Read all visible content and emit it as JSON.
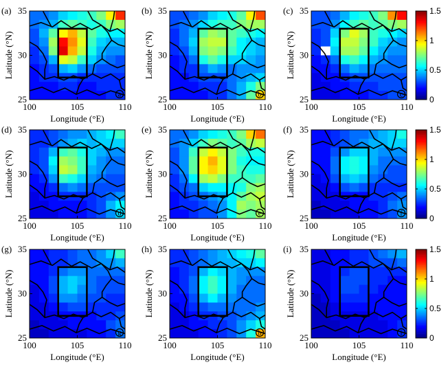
{
  "chart_data": {
    "type": "heatmap",
    "colormap": "jet",
    "clim": [
      0,
      1.5
    ],
    "colorbar_ticks": [
      0,
      0.5,
      1,
      1.5
    ],
    "xlabel": "Longitude (°E)",
    "ylabel": "Latitude (°N)",
    "xlim": [
      100,
      110
    ],
    "ylim": [
      25,
      35
    ],
    "xticks": [
      100,
      105,
      110
    ],
    "yticks": [
      25,
      30,
      35
    ],
    "grid_resolution_deg": 1,
    "study_box": {
      "lon": [
        103,
        106
      ],
      "lat": [
        27.5,
        33
      ]
    },
    "panels": [
      {
        "label": "(a)",
        "corner_mark": "a",
        "values": [
          [
            0.35,
            0.35,
            0.4,
            0.5,
            0.55,
            0.6,
            0.65,
            0.75,
            0.95,
            1.25
          ],
          [
            0.35,
            0.4,
            0.45,
            0.65,
            0.7,
            0.65,
            0.6,
            0.65,
            0.75,
            0.8
          ],
          [
            0.3,
            0.45,
            0.7,
            0.95,
            1.05,
            0.85,
            0.7,
            0.6,
            0.55,
            0.55
          ],
          [
            0.3,
            0.4,
            0.8,
            1.3,
            1.1,
            0.9,
            0.65,
            0.5,
            0.45,
            0.45
          ],
          [
            0.25,
            0.35,
            0.75,
            1.35,
            1.05,
            0.85,
            0.6,
            0.45,
            0.4,
            0.4
          ],
          [
            0.25,
            0.3,
            0.45,
            0.9,
            0.85,
            0.65,
            0.5,
            0.4,
            0.35,
            0.3
          ],
          [
            0.2,
            0.25,
            0.3,
            0.45,
            0.5,
            0.4,
            0.35,
            0.3,
            0.3,
            0.3
          ],
          [
            0.2,
            0.25,
            0.25,
            0.3,
            0.3,
            0.25,
            0.25,
            0.25,
            0.25,
            0.25
          ],
          [
            0.2,
            0.2,
            0.2,
            0.25,
            0.25,
            0.2,
            0.2,
            0.25,
            0.25,
            0.25
          ],
          [
            0.2,
            0.2,
            0.2,
            0.2,
            0.2,
            0.2,
            0.2,
            0.2,
            0.25,
            0.25
          ]
        ]
      },
      {
        "label": "(b)",
        "corner_mark": "b",
        "values": [
          [
            0.3,
            0.3,
            0.35,
            0.4,
            0.5,
            0.55,
            0.6,
            0.7,
            0.95,
            1.2
          ],
          [
            0.3,
            0.35,
            0.4,
            0.5,
            0.6,
            0.65,
            0.65,
            0.75,
            0.8,
            0.8
          ],
          [
            0.25,
            0.35,
            0.45,
            0.7,
            0.8,
            0.75,
            0.7,
            0.65,
            0.6,
            0.55
          ],
          [
            0.25,
            0.35,
            0.5,
            0.8,
            0.85,
            0.85,
            0.7,
            0.55,
            0.5,
            0.45
          ],
          [
            0.25,
            0.3,
            0.45,
            0.75,
            0.8,
            0.75,
            0.65,
            0.55,
            0.5,
            0.45
          ],
          [
            0.2,
            0.25,
            0.35,
            0.6,
            0.7,
            0.6,
            0.5,
            0.5,
            0.45,
            0.4
          ],
          [
            0.2,
            0.25,
            0.25,
            0.35,
            0.45,
            0.4,
            0.35,
            0.4,
            0.4,
            0.4
          ],
          [
            0.2,
            0.2,
            0.25,
            0.3,
            0.3,
            0.3,
            0.35,
            0.4,
            0.45,
            0.5
          ],
          [
            0.2,
            0.2,
            0.2,
            0.25,
            0.25,
            0.25,
            0.35,
            0.45,
            0.6,
            0.75
          ],
          [
            0.2,
            0.2,
            0.2,
            0.2,
            0.25,
            0.25,
            0.35,
            0.45,
            0.7,
            1.0
          ]
        ]
      },
      {
        "label": "(c)",
        "corner_mark": "c",
        "values": [
          [
            0.3,
            0.3,
            0.35,
            0.45,
            0.55,
            0.6,
            0.65,
            0.75,
            1.1,
            1.3
          ],
          [
            0.3,
            0.3,
            0.4,
            0.55,
            0.65,
            0.7,
            0.65,
            0.7,
            0.75,
            0.8
          ],
          [
            0.25,
            0.3,
            0.5,
            0.75,
            0.9,
            0.8,
            0.65,
            0.6,
            0.55,
            0.5
          ],
          [
            0.25,
            0.3,
            0.55,
            0.85,
            0.85,
            0.75,
            0.65,
            0.5,
            0.45,
            0.4
          ],
          [
            0.25,
            null,
            0.5,
            0.8,
            0.8,
            0.7,
            0.55,
            0.45,
            0.4,
            0.4
          ],
          [
            0.2,
            0.25,
            0.35,
            0.6,
            0.65,
            0.55,
            0.45,
            0.4,
            0.35,
            0.35
          ],
          [
            0.2,
            0.2,
            0.25,
            0.35,
            0.45,
            0.4,
            0.35,
            0.35,
            0.35,
            0.35
          ],
          [
            0.15,
            0.2,
            0.2,
            0.25,
            0.3,
            0.3,
            0.3,
            0.3,
            0.3,
            0.3
          ],
          [
            0.15,
            0.15,
            0.2,
            0.2,
            0.25,
            0.25,
            0.25,
            0.3,
            0.3,
            0.3
          ],
          [
            0.15,
            0.15,
            0.15,
            0.2,
            0.2,
            0.2,
            0.25,
            0.25,
            0.3,
            0.3
          ]
        ]
      },
      {
        "label": "(d)",
        "corner_mark": "d",
        "values": [
          [
            0.25,
            0.25,
            0.3,
            0.35,
            0.4,
            0.4,
            0.45,
            0.5,
            0.55,
            0.65
          ],
          [
            0.25,
            0.25,
            0.3,
            0.4,
            0.45,
            0.5,
            0.45,
            0.5,
            0.5,
            0.5
          ],
          [
            0.25,
            0.3,
            0.45,
            0.65,
            0.7,
            0.6,
            0.5,
            0.45,
            0.4,
            0.4
          ],
          [
            0.25,
            0.3,
            0.55,
            0.8,
            0.75,
            0.65,
            0.5,
            0.4,
            0.35,
            0.35
          ],
          [
            0.25,
            0.3,
            0.5,
            0.85,
            0.8,
            0.65,
            0.45,
            0.4,
            0.35,
            0.35
          ],
          [
            0.2,
            0.25,
            0.4,
            0.65,
            0.6,
            0.5,
            0.4,
            0.35,
            0.3,
            0.3
          ],
          [
            0.2,
            0.2,
            0.25,
            0.35,
            0.4,
            0.35,
            0.3,
            0.3,
            0.3,
            0.3
          ],
          [
            0.15,
            0.2,
            0.2,
            0.25,
            0.25,
            0.25,
            0.25,
            0.3,
            0.35,
            0.4
          ],
          [
            0.15,
            0.15,
            0.2,
            0.2,
            0.2,
            0.2,
            0.25,
            0.3,
            0.45,
            0.55
          ],
          [
            0.15,
            0.15,
            0.15,
            0.2,
            0.2,
            0.2,
            0.25,
            0.3,
            0.4,
            0.5
          ]
        ]
      },
      {
        "label": "(e)",
        "corner_mark": "e",
        "values": [
          [
            0.35,
            0.35,
            0.4,
            0.5,
            0.55,
            0.6,
            0.65,
            0.75,
            1.0,
            1.15
          ],
          [
            0.35,
            0.4,
            0.5,
            0.65,
            0.75,
            0.7,
            0.65,
            0.7,
            0.8,
            0.85
          ],
          [
            0.3,
            0.4,
            0.65,
            0.85,
            0.95,
            0.85,
            0.75,
            0.65,
            0.6,
            0.6
          ],
          [
            0.3,
            0.4,
            0.7,
            0.95,
            1.05,
            0.9,
            0.75,
            0.6,
            0.55,
            0.55
          ],
          [
            0.3,
            0.4,
            0.7,
            0.95,
            1.0,
            0.9,
            0.75,
            0.65,
            0.6,
            0.6
          ],
          [
            0.25,
            0.35,
            0.55,
            0.8,
            0.85,
            0.75,
            0.65,
            0.65,
            0.65,
            0.7
          ],
          [
            0.25,
            0.3,
            0.35,
            0.5,
            0.55,
            0.55,
            0.55,
            0.6,
            0.75,
            0.8
          ],
          [
            0.2,
            0.25,
            0.3,
            0.35,
            0.4,
            0.45,
            0.55,
            0.7,
            0.8,
            0.85
          ],
          [
            0.2,
            0.25,
            0.25,
            0.3,
            0.35,
            0.4,
            0.55,
            0.8,
            0.75,
            0.8
          ],
          [
            0.2,
            0.2,
            0.25,
            0.3,
            0.3,
            0.4,
            0.55,
            0.75,
            0.7,
            0.8
          ]
        ]
      },
      {
        "label": "(f)",
        "corner_mark": "f",
        "values": [
          [
            0.2,
            0.2,
            0.25,
            0.3,
            0.35,
            0.35,
            0.4,
            0.45,
            0.5,
            0.6
          ],
          [
            0.2,
            0.2,
            0.25,
            0.3,
            0.35,
            0.4,
            0.45,
            0.45,
            0.5,
            0.5
          ],
          [
            0.2,
            0.2,
            0.3,
            0.4,
            0.5,
            0.5,
            0.45,
            0.4,
            0.4,
            0.4
          ],
          [
            0.2,
            0.2,
            0.35,
            0.55,
            0.6,
            0.55,
            0.45,
            0.35,
            0.35,
            0.35
          ],
          [
            0.2,
            0.2,
            0.35,
            0.55,
            0.6,
            0.55,
            0.4,
            0.35,
            0.3,
            0.3
          ],
          [
            0.15,
            0.2,
            0.3,
            0.45,
            0.5,
            0.45,
            0.35,
            0.3,
            0.3,
            0.3
          ],
          [
            0.15,
            0.15,
            0.2,
            0.3,
            0.35,
            0.3,
            0.25,
            0.25,
            0.25,
            0.25
          ],
          [
            0.15,
            0.15,
            0.15,
            0.2,
            0.2,
            0.2,
            0.25,
            0.25,
            0.3,
            0.35
          ],
          [
            0.1,
            0.15,
            0.15,
            0.15,
            0.2,
            0.2,
            0.2,
            0.25,
            0.35,
            0.4
          ],
          [
            0.1,
            0.1,
            0.15,
            0.15,
            0.15,
            0.2,
            0.2,
            0.25,
            0.3,
            0.4
          ]
        ]
      },
      {
        "label": "(g)",
        "corner_mark": "g",
        "values": [
          [
            0.2,
            0.2,
            0.25,
            0.25,
            0.3,
            0.35,
            0.35,
            0.4,
            0.5,
            0.65
          ],
          [
            0.2,
            0.2,
            0.25,
            0.25,
            0.3,
            0.35,
            0.35,
            0.4,
            0.4,
            0.45
          ],
          [
            0.2,
            0.2,
            0.25,
            0.35,
            0.4,
            0.4,
            0.35,
            0.35,
            0.35,
            0.35
          ],
          [
            0.2,
            0.2,
            0.3,
            0.45,
            0.5,
            0.45,
            0.35,
            0.3,
            0.3,
            0.3
          ],
          [
            0.15,
            0.2,
            0.3,
            0.45,
            0.5,
            0.4,
            0.35,
            0.3,
            0.3,
            0.3
          ],
          [
            0.15,
            0.2,
            0.25,
            0.4,
            0.4,
            0.35,
            0.3,
            0.3,
            0.25,
            0.25
          ],
          [
            0.15,
            0.15,
            0.2,
            0.25,
            0.3,
            0.3,
            0.25,
            0.25,
            0.25,
            0.25
          ],
          [
            0.15,
            0.15,
            0.15,
            0.2,
            0.2,
            0.2,
            0.2,
            0.25,
            0.25,
            0.3
          ],
          [
            0.1,
            0.15,
            0.15,
            0.15,
            0.2,
            0.2,
            0.2,
            0.2,
            0.3,
            0.35
          ],
          [
            0.1,
            0.1,
            0.15,
            0.15,
            0.15,
            0.15,
            0.2,
            0.2,
            0.25,
            0.35
          ]
        ]
      },
      {
        "label": "(h)",
        "corner_mark": "h",
        "values": [
          [
            0.25,
            0.25,
            0.3,
            0.35,
            0.4,
            0.45,
            0.5,
            0.55,
            0.6,
            0.7
          ],
          [
            0.25,
            0.25,
            0.3,
            0.35,
            0.4,
            0.45,
            0.45,
            0.5,
            0.5,
            0.55
          ],
          [
            0.2,
            0.25,
            0.3,
            0.45,
            0.55,
            0.5,
            0.45,
            0.4,
            0.4,
            0.4
          ],
          [
            0.2,
            0.25,
            0.35,
            0.55,
            0.65,
            0.55,
            0.45,
            0.4,
            0.35,
            0.35
          ],
          [
            0.2,
            0.25,
            0.35,
            0.55,
            0.65,
            0.55,
            0.45,
            0.35,
            0.35,
            0.35
          ],
          [
            0.2,
            0.2,
            0.3,
            0.45,
            0.55,
            0.45,
            0.4,
            0.35,
            0.35,
            0.35
          ],
          [
            0.15,
            0.2,
            0.25,
            0.3,
            0.35,
            0.35,
            0.35,
            0.35,
            0.35,
            0.4
          ],
          [
            0.15,
            0.15,
            0.2,
            0.25,
            0.25,
            0.3,
            0.3,
            0.35,
            0.4,
            0.45
          ],
          [
            0.15,
            0.15,
            0.2,
            0.2,
            0.25,
            0.25,
            0.3,
            0.4,
            0.5,
            0.6
          ],
          [
            0.15,
            0.15,
            0.15,
            0.2,
            0.2,
            0.25,
            0.3,
            0.4,
            0.6,
            1.05
          ]
        ]
      },
      {
        "label": "(i)",
        "corner_mark": "i",
        "values": [
          [
            0.15,
            0.15,
            0.2,
            0.2,
            0.25,
            0.25,
            0.3,
            0.35,
            0.4,
            0.45
          ],
          [
            0.15,
            0.15,
            0.2,
            0.2,
            0.25,
            0.25,
            0.3,
            0.3,
            0.3,
            0.35
          ],
          [
            0.15,
            0.15,
            0.2,
            0.25,
            0.3,
            0.3,
            0.25,
            0.25,
            0.25,
            0.25
          ],
          [
            0.15,
            0.15,
            0.2,
            0.3,
            0.3,
            0.3,
            0.25,
            0.25,
            0.2,
            0.2
          ],
          [
            0.15,
            0.15,
            0.2,
            0.3,
            0.3,
            0.25,
            0.25,
            0.2,
            0.2,
            0.2
          ],
          [
            0.1,
            0.15,
            0.2,
            0.25,
            0.25,
            0.25,
            0.2,
            0.2,
            0.2,
            0.2
          ],
          [
            0.1,
            0.1,
            0.15,
            0.2,
            0.2,
            0.2,
            0.2,
            0.2,
            0.2,
            0.2
          ],
          [
            0.1,
            0.1,
            0.15,
            0.15,
            0.15,
            0.15,
            0.15,
            0.2,
            0.2,
            0.2
          ],
          [
            0.1,
            0.1,
            0.1,
            0.15,
            0.15,
            0.15,
            0.15,
            0.15,
            0.2,
            0.25
          ],
          [
            0.1,
            0.1,
            0.1,
            0.1,
            0.15,
            0.15,
            0.15,
            0.15,
            0.2,
            0.25
          ]
        ]
      }
    ]
  },
  "colors": {
    "frame": "#000000",
    "missing": "#ffffff",
    "border": "#000000"
  }
}
